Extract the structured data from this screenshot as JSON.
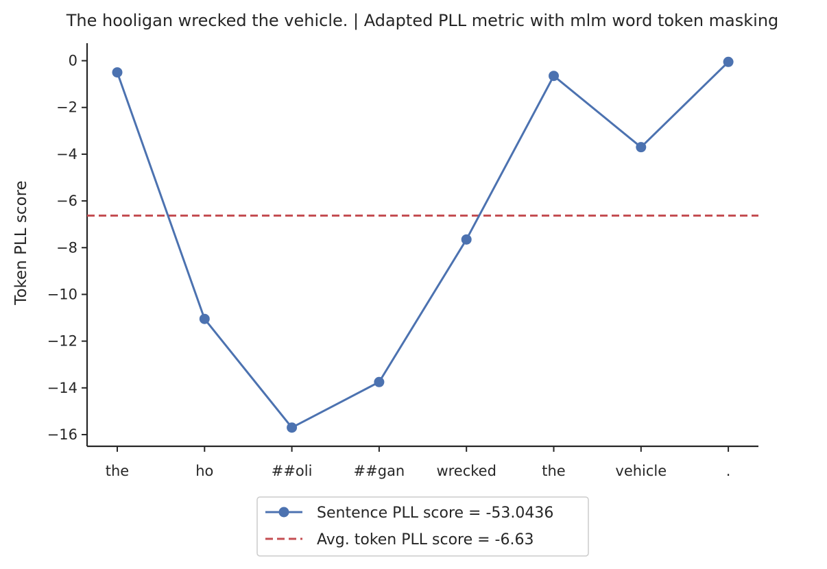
{
  "chart_data": {
    "type": "line",
    "title": "The hooligan wrecked the vehicle. | Adapted PLL metric with mlm word token masking",
    "xlabel": "",
    "ylabel": "Token PLL score",
    "categories": [
      "the",
      "ho",
      "##oli",
      "##gan",
      "wrecked",
      "the",
      "vehicle",
      "."
    ],
    "series": [
      {
        "name": "Sentence PLL score = -53.0436",
        "values": [
          -0.5,
          -11.05,
          -15.7,
          -13.75,
          -7.65,
          -0.65,
          -3.7,
          -0.05
        ],
        "color": "#4c72b0",
        "style": "solid-marker"
      }
    ],
    "reference_lines": [
      {
        "name": "Avg. token PLL score = -6.63",
        "value": -6.63,
        "color": "#c44e52",
        "style": "dashed"
      }
    ],
    "ylim": [
      -16.5,
      0.75
    ],
    "yticks": [
      0,
      -2,
      -4,
      -6,
      -8,
      -10,
      -12,
      -14,
      -16
    ],
    "ytick_labels": [
      "0",
      "−2",
      "−4",
      "−6",
      "−8",
      "−10",
      "−12",
      "−14",
      "−16"
    ],
    "grid": false,
    "legend_position": "bottom-center"
  }
}
